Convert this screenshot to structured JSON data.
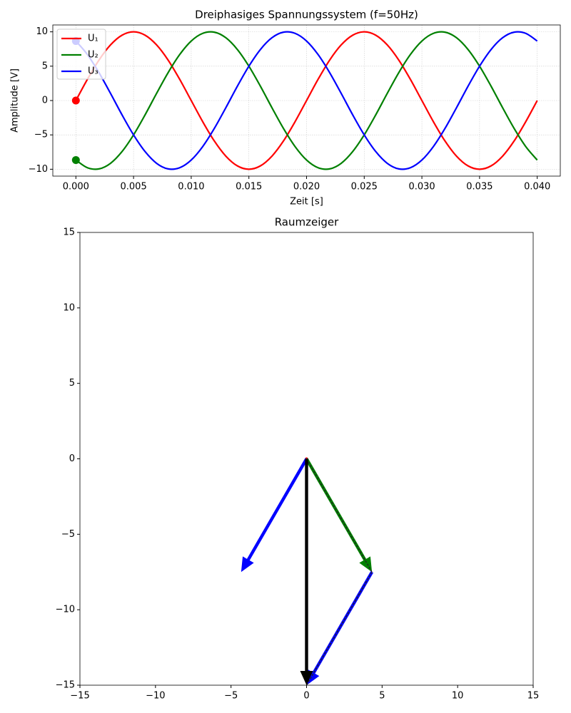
{
  "chart_data": [
    {
      "type": "line",
      "title": "Dreiphasiges Spannungssystem (f=50Hz)",
      "xlabel": "Zeit [s]",
      "ylabel": "Amplitude [V]",
      "x": [
        0,
        0.001,
        0.002,
        0.003,
        0.004,
        0.005,
        0.006,
        0.007,
        0.008,
        0.009,
        0.01,
        0.011,
        0.012,
        0.013,
        0.014,
        0.015,
        0.016,
        0.017,
        0.018,
        0.019,
        0.02,
        0.021,
        0.022,
        0.023,
        0.024,
        0.025,
        0.026,
        0.027,
        0.028,
        0.029,
        0.03,
        0.031,
        0.032,
        0.033,
        0.034,
        0.035,
        0.036,
        0.037,
        0.038,
        0.039,
        0.04
      ],
      "series": [
        {
          "name": "U₁",
          "color": "#ff0000",
          "values": [
            0,
            3.09,
            5.88,
            8.09,
            9.51,
            10,
            9.51,
            8.09,
            5.88,
            3.09,
            0,
            -3.09,
            -5.88,
            -8.09,
            -9.51,
            -10,
            -9.51,
            -8.09,
            -5.88,
            -3.09,
            0,
            3.09,
            5.88,
            8.09,
            9.51,
            10,
            9.51,
            8.09,
            5.88,
            3.09,
            0,
            -3.09,
            -5.88,
            -8.09,
            -9.51,
            -10,
            -9.51,
            -8.09,
            -5.88,
            -3.09,
            0
          ]
        },
        {
          "name": "U₂",
          "color": "#008000",
          "values": [
            -8.66,
            -9.78,
            -9.95,
            -9.14,
            -7.43,
            -5,
            -2.08,
            1.05,
            4.07,
            6.69,
            8.66,
            9.78,
            9.95,
            9.14,
            7.43,
            5,
            2.08,
            -1.05,
            -4.07,
            -6.69,
            -8.66,
            -9.78,
            -9.95,
            -9.14,
            -7.43,
            -5,
            -2.08,
            1.05,
            4.07,
            6.69,
            8.66,
            9.78,
            9.95,
            9.14,
            7.43,
            5,
            2.08,
            -1.05,
            -4.07,
            -6.69,
            -8.66
          ]
        },
        {
          "name": "U₃",
          "color": "#0000ff",
          "values": [
            8.66,
            6.69,
            4.07,
            1.05,
            -2.08,
            -5,
            -7.43,
            -9.14,
            -9.95,
            -9.78,
            -8.66,
            -6.69,
            -4.07,
            -1.05,
            2.08,
            5,
            7.43,
            9.14,
            9.95,
            9.78,
            8.66,
            6.69,
            4.07,
            1.05,
            -2.08,
            -5,
            -7.43,
            -9.14,
            -9.95,
            -9.78,
            -8.66,
            -6.69,
            -4.07,
            -1.05,
            2.08,
            5,
            7.43,
            9.14,
            9.95,
            9.78,
            8.66
          ]
        }
      ],
      "xlim": [
        -0.002,
        0.042
      ],
      "ylim": [
        -11,
        11
      ],
      "xticks": [
        {
          "value": 0,
          "label": "0.000"
        },
        {
          "value": 0.005,
          "label": "0.005"
        },
        {
          "value": 0.01,
          "label": "0.010"
        },
        {
          "value": 0.015,
          "label": "0.015"
        },
        {
          "value": 0.02,
          "label": "0.020"
        },
        {
          "value": 0.025,
          "label": "0.025"
        },
        {
          "value": 0.03,
          "label": "0.030"
        },
        {
          "value": 0.035,
          "label": "0.035"
        },
        {
          "value": 0.04,
          "label": "0.040"
        }
      ],
      "yticks": [
        {
          "value": -10,
          "label": "−10"
        },
        {
          "value": -5,
          "label": "−5"
        },
        0,
        5,
        10
      ],
      "grid": true,
      "legend": "upper left"
    },
    {
      "type": "quiver",
      "title": "Raumzeiger",
      "arrows": [
        {
          "x0": 0,
          "y0": 0,
          "dx": 0,
          "dy": 0,
          "color": "#ff0000"
        },
        {
          "x0": 0,
          "y0": 0,
          "dx": 4.33,
          "dy": -7.5,
          "color": "#008000",
          "dashed": true
        },
        {
          "x0": 0,
          "y0": 0,
          "dx": -4.33,
          "dy": -7.5,
          "color": "#0000ff"
        },
        {
          "x0": 4.33,
          "y0": -7.5,
          "dx": -4.33,
          "dy": -7.5,
          "color": "#0000ff",
          "dashed": true
        },
        {
          "x0": 0,
          "y0": 0,
          "dx": 0,
          "dy": -15,
          "color": "#000000"
        }
      ],
      "xlim": [
        -15,
        15
      ],
      "ylim": [
        -15,
        15
      ],
      "xticks": [
        {
          "value": -15,
          "label": "−15"
        },
        {
          "value": -10,
          "label": "−10"
        },
        {
          "value": -5,
          "label": "−5"
        },
        0,
        5,
        10,
        15
      ],
      "yticks": [
        {
          "value": -15,
          "label": "−15"
        },
        {
          "value": -10,
          "label": "−10"
        },
        {
          "value": -5,
          "label": "−5"
        },
        0,
        5,
        10,
        15
      ],
      "grid": false
    }
  ]
}
